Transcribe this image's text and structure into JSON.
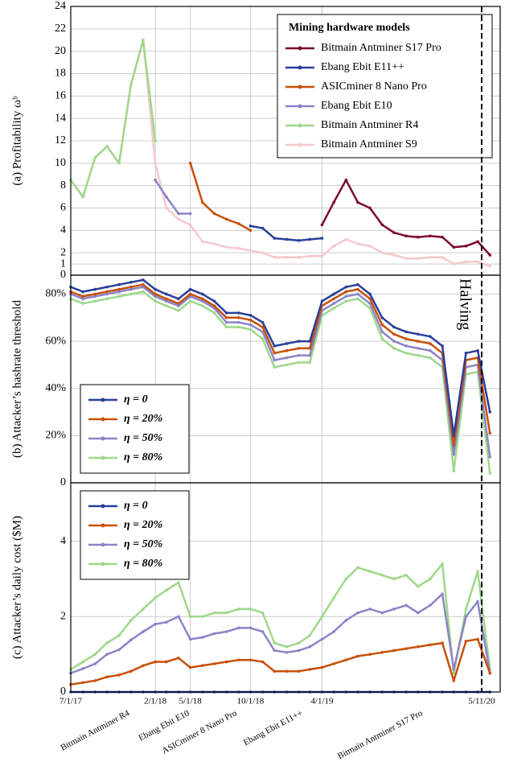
{
  "chart_data": [
    {
      "type": "line",
      "ylabel": "(a) Profitability ωᵇ",
      "x": [
        "2017-07-01",
        "2017-08-01",
        "2017-09-01",
        "2017-10-01",
        "2017-11-01",
        "2017-12-01",
        "2018-01-01",
        "2018-02-01",
        "2018-03-01",
        "2018-04-01",
        "2018-05-01",
        "2018-06-01",
        "2018-07-01",
        "2018-08-01",
        "2018-09-01",
        "2018-10-01",
        "2018-11-01",
        "2018-12-01",
        "2019-01-01",
        "2019-02-01",
        "2019-03-01",
        "2019-04-01",
        "2019-05-01",
        "2019-06-01",
        "2019-07-01",
        "2019-08-01",
        "2019-09-01",
        "2019-10-01",
        "2019-11-01",
        "2019-12-01",
        "2020-01-01",
        "2020-02-01",
        "2020-03-01",
        "2020-04-01",
        "2020-05-01",
        "2020-06-01"
      ],
      "xlim": [
        "2017-07-01",
        "2020-06-27"
      ],
      "ylim": [
        0,
        24
      ],
      "yticks": [
        0,
        1,
        2,
        4,
        6,
        8,
        10,
        12,
        14,
        16,
        18,
        20,
        22,
        24
      ],
      "grid": true,
      "legend_title": "Mining hardware models",
      "legend": "upper right",
      "series": [
        {
          "name": "Bitmain Antminer S17 Pro",
          "color": "#7b0c2a",
          "values": [
            null,
            null,
            null,
            null,
            null,
            null,
            null,
            null,
            null,
            null,
            null,
            null,
            null,
            null,
            null,
            null,
            null,
            null,
            null,
            null,
            null,
            4.5,
            6.5,
            8.5,
            6.5,
            6.0,
            4.5,
            3.8,
            3.5,
            3.4,
            3.5,
            3.4,
            2.5,
            2.6,
            3.0,
            1.8
          ]
        },
        {
          "name": "Ebang Ebit E11++",
          "color": "#2a3f9a",
          "values": [
            null,
            null,
            null,
            null,
            null,
            null,
            null,
            null,
            null,
            null,
            null,
            null,
            null,
            null,
            null,
            4.4,
            4.2,
            3.3,
            3.2,
            3.1,
            3.2,
            3.3,
            null,
            null,
            null,
            null,
            null,
            null,
            null,
            null,
            null,
            null,
            null,
            null,
            null,
            null
          ]
        },
        {
          "name": "ASICminer 8 Nano Pro",
          "color": "#c8500a",
          "values": [
            null,
            null,
            null,
            null,
            null,
            null,
            null,
            null,
            null,
            null,
            10.0,
            6.5,
            5.5,
            5.0,
            4.6,
            4.0,
            null,
            null,
            null,
            null,
            null,
            null,
            null,
            null,
            null,
            null,
            null,
            null,
            null,
            null,
            null,
            null,
            null,
            null,
            null,
            null
          ]
        },
        {
          "name": "Ebang Ebit E10",
          "color": "#8a85c8",
          "values": [
            null,
            null,
            null,
            null,
            null,
            null,
            null,
            8.5,
            7.0,
            5.5,
            5.5,
            null,
            null,
            null,
            null,
            null,
            null,
            null,
            null,
            null,
            null,
            null,
            null,
            null,
            null,
            null,
            null,
            null,
            null,
            null,
            null,
            null,
            null,
            null,
            null,
            null
          ]
        },
        {
          "name": "Bitmain Antminer R4",
          "color": "#9ed88a",
          "values": [
            8.5,
            7.0,
            10.5,
            11.5,
            10.0,
            17.0,
            21.0,
            12.0,
            null,
            null,
            null,
            null,
            null,
            null,
            null,
            null,
            null,
            null,
            null,
            null,
            null,
            null,
            null,
            null,
            null,
            null,
            null,
            null,
            null,
            null,
            null,
            null,
            null,
            null,
            null,
            null
          ]
        },
        {
          "name": "Bitmain Antminer S9",
          "color": "#f6c8cf",
          "values": [
            8.5,
            7,
            10.5,
            11.5,
            10,
            17,
            21,
            10,
            6,
            5,
            4.5,
            3,
            2.8,
            2.5,
            2.4,
            2.2,
            2.0,
            1.6,
            1.6,
            1.6,
            1.7,
            1.7,
            2.6,
            3.2,
            2.8,
            2.6,
            2.0,
            1.8,
            1.5,
            1.5,
            1.6,
            1.6,
            1.0,
            1.2,
            1.2,
            0.8
          ]
        }
      ]
    },
    {
      "type": "line",
      "ylabel": "(b) Attacker’s hashrate threshold",
      "x": [
        "2017-07-01",
        "2017-08-01",
        "2017-09-01",
        "2017-10-01",
        "2017-11-01",
        "2017-12-01",
        "2018-01-01",
        "2018-02-01",
        "2018-03-01",
        "2018-04-01",
        "2018-05-01",
        "2018-06-01",
        "2018-07-01",
        "2018-08-01",
        "2018-09-01",
        "2018-10-01",
        "2018-11-01",
        "2018-12-01",
        "2019-01-01",
        "2019-02-01",
        "2019-03-01",
        "2019-04-01",
        "2019-05-01",
        "2019-06-01",
        "2019-07-01",
        "2019-08-01",
        "2019-09-01",
        "2019-10-01",
        "2019-11-01",
        "2019-12-01",
        "2020-01-01",
        "2020-02-01",
        "2020-03-01",
        "2020-04-01",
        "2020-05-01",
        "2020-06-01"
      ],
      "xlim": [
        "2017-07-01",
        "2020-06-27"
      ],
      "ylim": [
        0,
        88
      ],
      "yticks": [
        0,
        {
          "value": 20,
          "label": "20%"
        },
        {
          "value": 40,
          "label": "40%"
        },
        {
          "value": 60,
          "label": "60%"
        },
        {
          "value": 80,
          "label": "80%"
        }
      ],
      "grid": true,
      "legend": "lower left",
      "series": [
        {
          "name": "η = 0",
          "color": "#2a3f9a",
          "values": [
            83,
            81,
            82,
            83,
            84,
            85,
            86,
            82,
            80,
            78,
            82,
            80,
            77,
            72,
            72,
            71,
            68,
            58,
            59,
            60,
            60,
            77,
            80,
            83,
            84,
            80,
            70,
            66,
            64,
            63,
            62,
            58,
            20,
            55,
            56,
            30
          ]
        },
        {
          "name": "η = 20%",
          "color": "#c8500a",
          "values": [
            81,
            79,
            80,
            81,
            82,
            83,
            84,
            80,
            78,
            76,
            80,
            78,
            75,
            70,
            70,
            69,
            66,
            55,
            56,
            57,
            57,
            75,
            78,
            81,
            82,
            78,
            67,
            63,
            61,
            60,
            59,
            55,
            16,
            52,
            53,
            21
          ]
        },
        {
          "name": "η = 50%",
          "color": "#8a85c8",
          "values": [
            80,
            78,
            79,
            80,
            81,
            82,
            83,
            79,
            77,
            75,
            79,
            77,
            74,
            68,
            68,
            67,
            64,
            52,
            53,
            54,
            54,
            73,
            76,
            79,
            80,
            76,
            64,
            60,
            58,
            57,
            56,
            52,
            12,
            49,
            50,
            11
          ]
        },
        {
          "name": "η = 80%",
          "color": "#9ed88a",
          "values": [
            78,
            76,
            77,
            78,
            79,
            80,
            81,
            77,
            75,
            73,
            77,
            75,
            72,
            66,
            66,
            65,
            61,
            49,
            50,
            51,
            51,
            71,
            74,
            77,
            78,
            74,
            61,
            57,
            55,
            54,
            53,
            49,
            5,
            46,
            47,
            4
          ]
        }
      ]
    },
    {
      "type": "line",
      "ylabel": "(c) Attacker’s daily cost ($M)",
      "x": [
        "2017-07-01",
        "2017-08-01",
        "2017-09-01",
        "2017-10-01",
        "2017-11-01",
        "2017-12-01",
        "2018-01-01",
        "2018-02-01",
        "2018-03-01",
        "2018-04-01",
        "2018-05-01",
        "2018-06-01",
        "2018-07-01",
        "2018-08-01",
        "2018-09-01",
        "2018-10-01",
        "2018-11-01",
        "2018-12-01",
        "2019-01-01",
        "2019-02-01",
        "2019-03-01",
        "2019-04-01",
        "2019-05-01",
        "2019-06-01",
        "2019-07-01",
        "2019-08-01",
        "2019-09-01",
        "2019-10-01",
        "2019-11-01",
        "2019-12-01",
        "2020-01-01",
        "2020-02-01",
        "2020-03-01",
        "2020-04-01",
        "2020-05-01",
        "2020-06-01"
      ],
      "xlim": [
        "2017-07-01",
        "2020-06-27"
      ],
      "xticks": [
        {
          "value": "2017-07-01",
          "label": "7/1/17"
        },
        {
          "value": "2018-02-01",
          "label": "2/1/18"
        },
        {
          "value": "2018-05-01",
          "label": "5/1/18"
        },
        {
          "value": "2018-10-01",
          "label": "10/1/18"
        },
        {
          "value": "2019-04-01",
          "label": "4/1/19"
        },
        {
          "value": "2020-05-11",
          "label": "5/11/20"
        }
      ],
      "ylim": [
        0,
        5.55
      ],
      "yticks": [
        0,
        2,
        4
      ],
      "grid": true,
      "legend": "upper left",
      "series": [
        {
          "name": "η = 0",
          "color": "#2a3f9a",
          "values": [
            0,
            0,
            0,
            0,
            0,
            0,
            0,
            0,
            0,
            0,
            0,
            0,
            0,
            0,
            0,
            0,
            0,
            0,
            0,
            0,
            0,
            0,
            0,
            0,
            0,
            0,
            0,
            0,
            0,
            0,
            0,
            0,
            0,
            0,
            0,
            0
          ]
        },
        {
          "name": "η = 20%",
          "color": "#c8500a",
          "values": [
            0.2,
            0.25,
            0.3,
            0.4,
            0.45,
            0.55,
            0.7,
            0.8,
            0.8,
            0.9,
            0.65,
            0.7,
            0.75,
            0.8,
            0.85,
            0.85,
            0.8,
            0.55,
            0.55,
            0.55,
            0.6,
            0.65,
            0.75,
            0.85,
            0.95,
            1.0,
            1.05,
            1.1,
            1.15,
            1.2,
            1.25,
            1.3,
            0.3,
            1.35,
            1.4,
            0.5
          ]
        },
        {
          "name": "η = 50%",
          "color": "#8a85c8",
          "values": [
            0.5,
            0.62,
            0.75,
            1.0,
            1.12,
            1.38,
            1.6,
            1.8,
            1.85,
            2.0,
            1.4,
            1.45,
            1.55,
            1.6,
            1.7,
            1.7,
            1.6,
            1.1,
            1.05,
            1.1,
            1.2,
            1.4,
            1.6,
            1.9,
            2.1,
            2.2,
            2.1,
            2.2,
            2.3,
            2.1,
            2.3,
            2.6,
            0.6,
            2.0,
            2.4,
            0.5
          ]
        },
        {
          "name": "η = 80%",
          "color": "#9ed88a",
          "values": [
            0.6,
            0.8,
            1.0,
            1.3,
            1.5,
            1.9,
            2.2,
            2.5,
            2.7,
            2.9,
            2.0,
            2.0,
            2.1,
            2.1,
            2.2,
            2.2,
            2.1,
            1.3,
            1.2,
            1.3,
            1.5,
            2.0,
            2.5,
            3.0,
            3.3,
            3.2,
            3.1,
            3.0,
            3.1,
            2.8,
            3.0,
            3.4,
            0.5,
            2.2,
            3.2,
            0.6
          ]
        }
      ]
    }
  ],
  "halving": {
    "label": "Halving",
    "date": "2020-05-11"
  }
}
